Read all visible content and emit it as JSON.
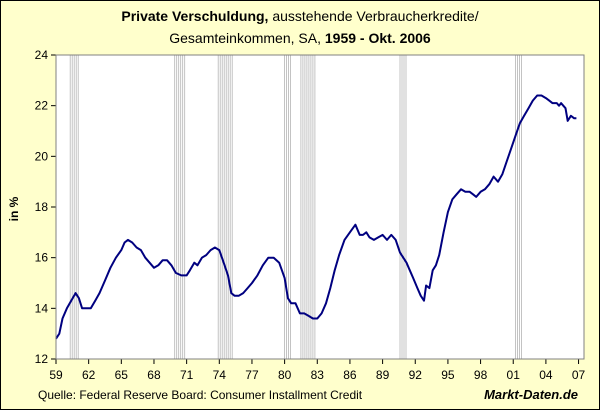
{
  "title": {
    "main_bold": "Private Verschuldung,",
    "main_rest": " ausstehende Verbraucherkredite/",
    "sub_rest": "Gesamteinkommen, SA, ",
    "sub_bold": "1959 -  Okt. 2006"
  },
  "source": "Quelle: Federal Reserve Board: Consumer Installment Credit",
  "brand": "Markt-Daten.de",
  "colors": {
    "background": "#ffffcc",
    "plot_background": "#ffffff",
    "line": "#000080",
    "recession_band": "#b4b4b4"
  },
  "chart_data": {
    "type": "line",
    "title": "Private Verschuldung, ausstehende Verbraucherkredite/Gesamteinkommen, SA, 1959 -  Okt. 2006",
    "xlabel": "",
    "ylabel": "in %",
    "xlim": [
      1959,
      2007.5
    ],
    "ylim": [
      12,
      24
    ],
    "y_ticks": [
      12,
      14,
      16,
      18,
      20,
      22,
      24
    ],
    "x_ticks": [
      {
        "value": 1959,
        "label": "59"
      },
      {
        "value": 1962,
        "label": "62"
      },
      {
        "value": 1965,
        "label": "65"
      },
      {
        "value": 1968,
        "label": "68"
      },
      {
        "value": 1971,
        "label": "71"
      },
      {
        "value": 1974,
        "label": "74"
      },
      {
        "value": 1977,
        "label": "77"
      },
      {
        "value": 1980,
        "label": "80"
      },
      {
        "value": 1983,
        "label": "83"
      },
      {
        "value": 1986,
        "label": "86"
      },
      {
        "value": 1989,
        "label": "89"
      },
      {
        "value": 1992,
        "label": "92"
      },
      {
        "value": 1995,
        "label": "95"
      },
      {
        "value": 1998,
        "label": "98"
      },
      {
        "value": 2001,
        "label": "01"
      },
      {
        "value": 2004,
        "label": "04"
      },
      {
        "value": 2007,
        "label": "07"
      }
    ],
    "grid": false,
    "recession_bands": [
      [
        1960.3,
        1961.1
      ],
      [
        1969.9,
        1970.9
      ],
      [
        1973.9,
        1975.2
      ],
      [
        1980.0,
        1980.6
      ],
      [
        1981.5,
        1982.9
      ],
      [
        1990.6,
        1991.2
      ],
      [
        2001.2,
        2001.9
      ]
    ],
    "series": [
      {
        "x": [
          1959.0,
          1959.3,
          1959.6,
          1960.0,
          1960.4,
          1960.8,
          1961.1,
          1961.4,
          1961.8,
          1962.2,
          1962.6,
          1963.0,
          1963.5,
          1964.0,
          1964.5,
          1965.0,
          1965.3,
          1965.6,
          1966.0,
          1966.4,
          1966.8,
          1967.2,
          1967.6,
          1968.0,
          1968.4,
          1968.8,
          1969.2,
          1969.6,
          1970.0,
          1970.5,
          1971.0,
          1971.3,
          1971.7,
          1972.0,
          1972.4,
          1972.8,
          1973.2,
          1973.6,
          1974.0,
          1974.4,
          1974.8,
          1975.1,
          1975.4,
          1975.8,
          1976.2,
          1976.6,
          1977.0,
          1977.5,
          1978.0,
          1978.5,
          1979.0,
          1979.5,
          1980.0,
          1980.3,
          1980.6,
          1981.0,
          1981.4,
          1981.8,
          1982.2,
          1982.6,
          1983.0,
          1983.4,
          1983.8,
          1984.2,
          1984.6,
          1985.0,
          1985.5,
          1986.0,
          1986.5,
          1986.9,
          1987.2,
          1987.5,
          1987.8,
          1988.2,
          1988.6,
          1989.0,
          1989.4,
          1989.8,
          1990.2,
          1990.6,
          1990.9,
          1991.2,
          1991.5,
          1991.8,
          1992.2,
          1992.5,
          1992.8,
          1993.0,
          1993.3,
          1993.6,
          1993.9,
          1994.2,
          1994.6,
          1995.0,
          1995.4,
          1995.8,
          1996.2,
          1996.6,
          1997.0,
          1997.3,
          1997.6,
          1998.0,
          1998.4,
          1998.8,
          1999.2,
          1999.6,
          2000.0,
          2000.4,
          2000.8,
          2001.2,
          2001.6,
          2002.0,
          2002.4,
          2002.8,
          2003.2,
          2003.6,
          2004.0,
          2004.3,
          2004.6,
          2005.0,
          2005.2,
          2005.4,
          2005.6,
          2005.8,
          2006.0,
          2006.3,
          2006.6,
          2006.8
        ],
        "y": [
          12.8,
          13.0,
          13.6,
          14.0,
          14.3,
          14.6,
          14.4,
          14.0,
          14.0,
          14.0,
          14.3,
          14.6,
          15.1,
          15.6,
          16.0,
          16.3,
          16.6,
          16.7,
          16.6,
          16.4,
          16.3,
          16.0,
          15.8,
          15.6,
          15.7,
          15.9,
          15.9,
          15.7,
          15.4,
          15.3,
          15.3,
          15.5,
          15.8,
          15.7,
          16.0,
          16.1,
          16.3,
          16.4,
          16.3,
          15.8,
          15.3,
          14.6,
          14.5,
          14.5,
          14.6,
          14.8,
          15.0,
          15.3,
          15.7,
          16.0,
          16.0,
          15.8,
          15.2,
          14.4,
          14.2,
          14.2,
          13.8,
          13.8,
          13.7,
          13.6,
          13.6,
          13.8,
          14.2,
          14.8,
          15.5,
          16.1,
          16.7,
          17.0,
          17.3,
          16.9,
          16.9,
          17.0,
          16.8,
          16.7,
          16.8,
          16.9,
          16.7,
          16.9,
          16.7,
          16.2,
          16.0,
          15.8,
          15.5,
          15.2,
          14.8,
          14.5,
          14.3,
          14.9,
          14.8,
          15.5,
          15.7,
          16.1,
          17.0,
          17.8,
          18.3,
          18.5,
          18.7,
          18.6,
          18.6,
          18.5,
          18.4,
          18.6,
          18.7,
          18.9,
          19.2,
          19.0,
          19.3,
          19.8,
          20.3,
          20.8,
          21.3,
          21.6,
          21.9,
          22.2,
          22.4,
          22.4,
          22.3,
          22.2,
          22.1,
          22.1,
          22.0,
          22.1,
          22.0,
          21.9,
          21.4,
          21.6,
          21.5,
          21.5
        ]
      }
    ]
  }
}
